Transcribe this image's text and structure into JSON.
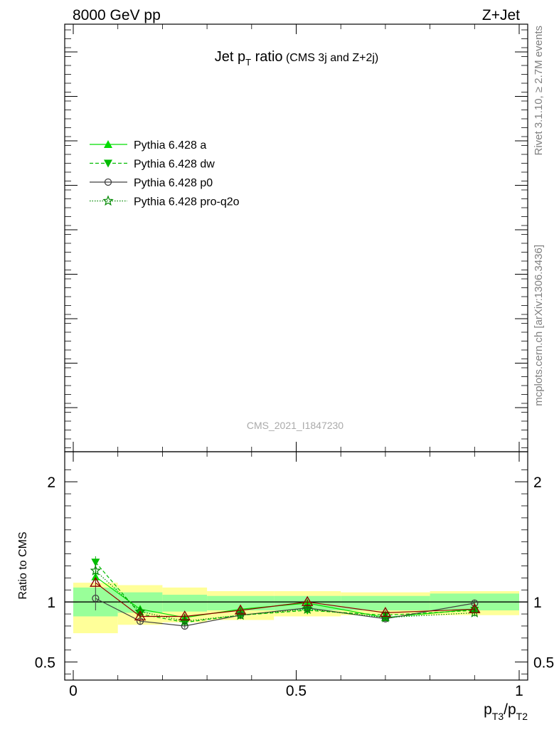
{
  "header": {
    "left": "8000 GeV pp",
    "right": "Z+Jet"
  },
  "main_title": {
    "prefix": "Jet p",
    "sub": "T",
    "suffix": " ratio",
    "small": " (CMS 3j and Z+2j)"
  },
  "watermark": "CMS_2021_I1847230",
  "side_top": "Rivet 3.1.10, ≥ 2.7M events",
  "side_bottom": "mcplots.cern.ch [arXiv:1306.3436]",
  "legend": [
    {
      "label": "Pythia 6.428 a",
      "color": "#00dd00",
      "dash": "",
      "marker": "triangle-up"
    },
    {
      "label": "Pythia 6.428 dw",
      "color": "#00bb00",
      "dash": "5,3",
      "marker": "triangle-down"
    },
    {
      "label": "Pythia 6.428 p0",
      "color": "#404040",
      "dash": "",
      "marker": "circle"
    },
    {
      "label": "Pythia 6.428 pro-q2o",
      "color": "#008800",
      "dash": "1.5,2",
      "marker": "star"
    }
  ],
  "ratio_ylabel": "Ratio to CMS",
  "xlabel": {
    "p1": "p",
    "s1": "T3",
    "slash": "/p",
    "s2": "T2"
  },
  "chart_data": {
    "type": "line",
    "xlim": [
      0,
      1
    ],
    "ratio_ylim": [
      0.35,
      2.25
    ],
    "x_ticks": [
      {
        "v": 0,
        "label": "0"
      },
      {
        "v": 0.5,
        "label": "0.5"
      },
      {
        "v": 1,
        "label": "1"
      }
    ],
    "y_ticks": [
      {
        "v": 0.5,
        "label": "0.5"
      },
      {
        "v": 1,
        "label": "1"
      },
      {
        "v": 2,
        "label": "2"
      }
    ],
    "bins": [
      [
        0,
        0.1
      ],
      [
        0.1,
        0.2
      ],
      [
        0.2,
        0.3
      ],
      [
        0.3,
        0.45
      ],
      [
        0.45,
        0.6
      ],
      [
        0.6,
        0.8
      ],
      [
        0.8,
        1.0
      ]
    ],
    "band_stat": [
      [
        0.88,
        1.12
      ],
      [
        0.91,
        1.08
      ],
      [
        0.92,
        1.06
      ],
      [
        0.93,
        1.05
      ],
      [
        0.93,
        1.05
      ],
      [
        0.93,
        1.05
      ],
      [
        0.93,
        1.07
      ]
    ],
    "band_total": [
      [
        0.74,
        1.16
      ],
      [
        0.81,
        1.14
      ],
      [
        0.83,
        1.12
      ],
      [
        0.85,
        1.09
      ],
      [
        0.88,
        1.09
      ],
      [
        0.89,
        1.08
      ],
      [
        0.89,
        1.09
      ]
    ],
    "reference_line": 1.0,
    "x": [
      0.05,
      0.15,
      0.25,
      0.375,
      0.525,
      0.7,
      0.9
    ],
    "series": [
      {
        "name": "Pythia 6.428 a",
        "values": [
          1.21,
          0.94,
          0.87,
          0.94,
          0.99,
          0.87,
          0.94
        ],
        "errors": [
          0.05,
          0.03,
          0.02,
          0.02,
          0.02,
          0.02,
          0.03
        ]
      },
      {
        "name": "Pythia 6.428 dw",
        "values": [
          1.33,
          0.9,
          0.83,
          0.89,
          0.93,
          0.89,
          0.93
        ],
        "errors": [
          0.05,
          0.03,
          0.02,
          0.02,
          0.02,
          0.02,
          0.03
        ]
      },
      {
        "name": "Pythia 6.428 p0",
        "values": [
          1.03,
          0.84,
          0.8,
          0.89,
          0.95,
          0.86,
          0.99
        ],
        "errors": [
          0.1,
          0.03,
          0.02,
          0.02,
          0.02,
          0.02,
          0.03
        ]
      },
      {
        "name": "Pythia 6.428 pro-q2o",
        "values": [
          1.26,
          0.92,
          0.84,
          0.89,
          0.94,
          0.87,
          0.91
        ],
        "errors": [
          0.05,
          0.03,
          0.02,
          0.02,
          0.02,
          0.02,
          0.03
        ]
      },
      {
        "name": "",
        "values": [
          1.16,
          0.88,
          0.88,
          0.93,
          1.0,
          0.91,
          0.94
        ],
        "errors": [
          0.03,
          0.02,
          0.02,
          0.02,
          0.02,
          0.02,
          0.02
        ]
      }
    ],
    "series_colors": [
      "#00dd00",
      "#00bb00",
      "#404040",
      "#008800",
      "#8b0000"
    ]
  }
}
